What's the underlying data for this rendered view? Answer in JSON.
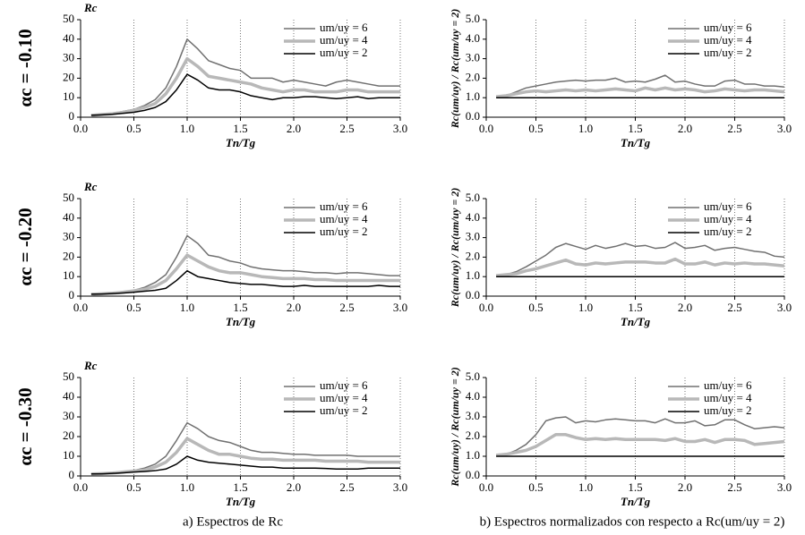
{
  "row_labels": [
    "αc = -0.10",
    "αc = -0.20",
    "αc = -0.30"
  ],
  "captions": [
    "a) Espectros de Rc",
    "b) Espectros normalizados con respecto a Rc(um/uy = 2)"
  ],
  "chart_data": [
    {
      "type": "line",
      "y_label": "Rc",
      "x_label": "Tn/Tg",
      "x": [
        0.1,
        0.2,
        0.3,
        0.4,
        0.5,
        0.6,
        0.7,
        0.8,
        0.9,
        1.0,
        1.1,
        1.2,
        1.3,
        1.4,
        1.5,
        1.6,
        1.7,
        1.8,
        1.9,
        2.0,
        2.1,
        2.2,
        2.3,
        2.4,
        2.5,
        2.6,
        2.7,
        2.8,
        2.9,
        3.0
      ],
      "series": [
        {
          "name": "um/uy = 6",
          "color": "#707070",
          "width": 1.5,
          "values": [
            1,
            1.5,
            2,
            3,
            4,
            6,
            9,
            15,
            26,
            40,
            35,
            29,
            27,
            25,
            24,
            20,
            20,
            20,
            18,
            19,
            18,
            17,
            16,
            18,
            19,
            18,
            17,
            16,
            16,
            16
          ]
        },
        {
          "name": "um/uy = 4",
          "color": "#b8b8b8",
          "width": 3.5,
          "values": [
            1,
            1.4,
            1.8,
            2.5,
            3.5,
            5,
            7,
            12,
            20,
            30,
            26,
            21,
            20,
            19,
            18,
            17,
            15,
            14,
            13,
            14,
            14,
            13,
            13,
            13,
            14,
            14,
            13,
            13,
            13,
            13
          ]
        },
        {
          "name": "um/uy = 2",
          "color": "#000000",
          "width": 1.5,
          "values": [
            1,
            1.2,
            1.5,
            2,
            2.5,
            3.5,
            5,
            8,
            14,
            22,
            19,
            15,
            14,
            14,
            13,
            11,
            10,
            9,
            10,
            10,
            10.5,
            10.5,
            10,
            9.5,
            10,
            10.5,
            9.5,
            10,
            10,
            10
          ]
        }
      ],
      "xlim": [
        0,
        3
      ],
      "xticks": [
        {
          "value": 0,
          "label": "0.0"
        },
        0.5,
        {
          "value": 1,
          "label": "1.0"
        },
        1.5,
        {
          "value": 2,
          "label": "2.0"
        },
        2.5,
        {
          "value": 3,
          "label": "3.0"
        }
      ],
      "ylim": [
        0,
        50
      ],
      "yticks": [
        0,
        10,
        20,
        30,
        40,
        50
      ],
      "grid": "x",
      "legend": "upper right"
    },
    {
      "type": "line",
      "y_label": "Rc(um/uy) / Rc(um/uy = 2)",
      "x_label": "Tn/Tg",
      "x": [
        0.1,
        0.2,
        0.3,
        0.4,
        0.5,
        0.6,
        0.7,
        0.8,
        0.9,
        1.0,
        1.1,
        1.2,
        1.3,
        1.4,
        1.5,
        1.6,
        1.7,
        1.8,
        1.9,
        2.0,
        2.1,
        2.2,
        2.3,
        2.4,
        2.5,
        2.6,
        2.7,
        2.8,
        2.9,
        3.0
      ],
      "series": [
        {
          "name": "um/uy = 6",
          "color": "#707070",
          "width": 1.5,
          "values": [
            1.05,
            1.1,
            1.3,
            1.5,
            1.6,
            1.7,
            1.8,
            1.85,
            1.9,
            1.85,
            1.9,
            1.9,
            2.0,
            1.8,
            1.85,
            1.8,
            1.95,
            2.15,
            1.8,
            1.85,
            1.7,
            1.6,
            1.6,
            1.85,
            1.9,
            1.7,
            1.7,
            1.6,
            1.6,
            1.55
          ]
        },
        {
          "name": "um/uy = 4",
          "color": "#b8b8b8",
          "width": 3.5,
          "values": [
            1.05,
            1.1,
            1.2,
            1.3,
            1.35,
            1.3,
            1.35,
            1.4,
            1.35,
            1.4,
            1.35,
            1.4,
            1.45,
            1.4,
            1.35,
            1.5,
            1.4,
            1.5,
            1.4,
            1.45,
            1.4,
            1.3,
            1.35,
            1.45,
            1.4,
            1.35,
            1.4,
            1.4,
            1.35,
            1.3
          ]
        },
        {
          "name": "um/uy = 2",
          "color": "#000000",
          "width": 1.5,
          "values": [
            1,
            1,
            1,
            1,
            1,
            1,
            1,
            1,
            1,
            1,
            1,
            1,
            1,
            1,
            1,
            1,
            1,
            1,
            1,
            1,
            1,
            1,
            1,
            1,
            1,
            1,
            1,
            1,
            1,
            1
          ]
        }
      ],
      "xlim": [
        0,
        3
      ],
      "xticks": [
        {
          "value": 0,
          "label": "0.0"
        },
        0.5,
        {
          "value": 1,
          "label": "1.0"
        },
        1.5,
        {
          "value": 2,
          "label": "2.0"
        },
        2.5,
        {
          "value": 3,
          "label": "3.0"
        }
      ],
      "ylim": [
        0,
        5
      ],
      "yticks": [
        {
          "value": 0,
          "label": "0.0"
        },
        {
          "value": 1,
          "label": "1.0"
        },
        {
          "value": 2,
          "label": "2.0"
        },
        {
          "value": 3,
          "label": "3.0"
        },
        {
          "value": 4,
          "label": "4.0"
        },
        {
          "value": 5,
          "label": "5.0"
        }
      ],
      "grid": "x",
      "legend": "upper right"
    },
    {
      "type": "line",
      "y_label": "Rc",
      "x_label": "Tn/Tg",
      "x": [
        0.1,
        0.2,
        0.3,
        0.4,
        0.5,
        0.6,
        0.7,
        0.8,
        0.9,
        1.0,
        1.1,
        1.2,
        1.3,
        1.4,
        1.5,
        1.6,
        1.7,
        1.8,
        1.9,
        2.0,
        2.1,
        2.2,
        2.3,
        2.4,
        2.5,
        2.6,
        2.7,
        2.8,
        2.9,
        3.0
      ],
      "series": [
        {
          "name": "um/uy = 6",
          "color": "#707070",
          "width": 1.5,
          "values": [
            1,
            1.3,
            1.7,
            2.2,
            3,
            4.5,
            7,
            11,
            20,
            31,
            27,
            21,
            20,
            18,
            17,
            15,
            14,
            13.5,
            13,
            13,
            12.5,
            12,
            12,
            11.5,
            12,
            12,
            11.5,
            11,
            10.5,
            10.5
          ]
        },
        {
          "name": "um/uy = 4",
          "color": "#b8b8b8",
          "width": 3.5,
          "values": [
            1,
            1.2,
            1.5,
            2,
            2.7,
            3.5,
            5,
            8,
            14,
            21,
            18,
            15,
            13,
            12,
            12,
            11,
            10,
            9.5,
            9,
            9,
            9,
            8.5,
            8.5,
            8,
            8,
            8,
            8,
            8,
            8,
            8
          ]
        },
        {
          "name": "um/uy = 2",
          "color": "#000000",
          "width": 1.5,
          "values": [
            1,
            1.1,
            1.3,
            1.6,
            2,
            2.5,
            3,
            4,
            8,
            13,
            10,
            9,
            8,
            7,
            6.5,
            6,
            6,
            5.5,
            5,
            5,
            5.5,
            5,
            5,
            5,
            5,
            5,
            5,
            5.5,
            5,
            5
          ]
        }
      ],
      "xlim": [
        0,
        3
      ],
      "xticks": [
        {
          "value": 0,
          "label": "0.0"
        },
        0.5,
        {
          "value": 1,
          "label": "1.0"
        },
        1.5,
        {
          "value": 2,
          "label": "2.0"
        },
        2.5,
        {
          "value": 3,
          "label": "3.0"
        }
      ],
      "ylim": [
        0,
        50
      ],
      "yticks": [
        0,
        10,
        20,
        30,
        40,
        50
      ],
      "grid": "x",
      "legend": "upper right"
    },
    {
      "type": "line",
      "y_label": "Rc(um/uy) / Rc(um/uy = 2)",
      "x_label": "Tn/Tg",
      "x": [
        0.1,
        0.2,
        0.3,
        0.4,
        0.5,
        0.6,
        0.7,
        0.8,
        0.9,
        1.0,
        1.1,
        1.2,
        1.3,
        1.4,
        1.5,
        1.6,
        1.7,
        1.8,
        1.9,
        2.0,
        2.1,
        2.2,
        2.3,
        2.4,
        2.5,
        2.6,
        2.7,
        2.8,
        2.9,
        3.0
      ],
      "series": [
        {
          "name": "um/uy = 6",
          "color": "#707070",
          "width": 1.5,
          "values": [
            1.05,
            1.1,
            1.25,
            1.5,
            1.8,
            2.1,
            2.5,
            2.7,
            2.55,
            2.4,
            2.6,
            2.45,
            2.55,
            2.7,
            2.55,
            2.6,
            2.45,
            2.5,
            2.75,
            2.45,
            2.5,
            2.6,
            2.35,
            2.45,
            2.5,
            2.4,
            2.3,
            2.25,
            2.05,
            2.0
          ]
        },
        {
          "name": "um/uy = 4",
          "color": "#b8b8b8",
          "width": 3.5,
          "values": [
            1.05,
            1.1,
            1.15,
            1.3,
            1.4,
            1.55,
            1.7,
            1.85,
            1.65,
            1.6,
            1.7,
            1.65,
            1.7,
            1.75,
            1.75,
            1.75,
            1.7,
            1.7,
            1.9,
            1.65,
            1.65,
            1.75,
            1.6,
            1.7,
            1.65,
            1.7,
            1.65,
            1.65,
            1.6,
            1.55
          ]
        },
        {
          "name": "um/uy = 2",
          "color": "#000000",
          "width": 1.5,
          "values": [
            1,
            1,
            1,
            1,
            1,
            1,
            1,
            1,
            1,
            1,
            1,
            1,
            1,
            1,
            1,
            1,
            1,
            1,
            1,
            1,
            1,
            1,
            1,
            1,
            1,
            1,
            1,
            1,
            1,
            1
          ]
        }
      ],
      "xlim": [
        0,
        3
      ],
      "xticks": [
        {
          "value": 0,
          "label": "0.0"
        },
        0.5,
        {
          "value": 1,
          "label": "1.0"
        },
        1.5,
        {
          "value": 2,
          "label": "2.0"
        },
        2.5,
        {
          "value": 3,
          "label": "3.0"
        }
      ],
      "ylim": [
        0,
        5
      ],
      "yticks": [
        {
          "value": 0,
          "label": "0.0"
        },
        {
          "value": 1,
          "label": "1.0"
        },
        {
          "value": 2,
          "label": "2.0"
        },
        {
          "value": 3,
          "label": "3.0"
        },
        {
          "value": 4,
          "label": "4.0"
        },
        {
          "value": 5,
          "label": "5.0"
        }
      ],
      "grid": "x",
      "legend": "upper right"
    },
    {
      "type": "line",
      "y_label": "Rc",
      "x_label": "Tn/Tg",
      "x": [
        0.1,
        0.2,
        0.3,
        0.4,
        0.5,
        0.6,
        0.7,
        0.8,
        0.9,
        1.0,
        1.1,
        1.2,
        1.3,
        1.4,
        1.5,
        1.6,
        1.7,
        1.8,
        1.9,
        2.0,
        2.1,
        2.2,
        2.3,
        2.4,
        2.5,
        2.6,
        2.7,
        2.8,
        2.9,
        3.0
      ],
      "series": [
        {
          "name": "um/uy = 6",
          "color": "#707070",
          "width": 1.5,
          "values": [
            1,
            1.3,
            1.7,
            2.2,
            2.8,
            4,
            6,
            10,
            18,
            27,
            24,
            20,
            18,
            17,
            15,
            13,
            12,
            12,
            11.5,
            11,
            11,
            10.5,
            10.5,
            10.5,
            10.5,
            10,
            10,
            10,
            10,
            10
          ]
        },
        {
          "name": "um/uy = 4",
          "color": "#b8b8b8",
          "width": 3.5,
          "values": [
            1,
            1.2,
            1.5,
            2,
            2.5,
            3,
            4.5,
            7,
            12,
            19,
            16,
            13,
            11,
            11,
            10,
            9,
            8.5,
            8.5,
            8,
            8,
            8,
            8,
            7.5,
            7.5,
            7.5,
            7.5,
            7,
            7,
            7,
            7
          ]
        },
        {
          "name": "um/uy = 2",
          "color": "#000000",
          "width": 1.5,
          "values": [
            1,
            1.1,
            1.3,
            1.6,
            2,
            2.3,
            2.7,
            3.5,
            6,
            10,
            8,
            7,
            6.5,
            6,
            5.5,
            5,
            4.5,
            4.5,
            4,
            4,
            4,
            4,
            3.8,
            3.5,
            3.5,
            3.5,
            4,
            4,
            4,
            4
          ]
        }
      ],
      "xlim": [
        0,
        3
      ],
      "xticks": [
        {
          "value": 0,
          "label": "0.0"
        },
        0.5,
        {
          "value": 1,
          "label": "1.0"
        },
        1.5,
        {
          "value": 2,
          "label": "2.0"
        },
        2.5,
        {
          "value": 3,
          "label": "3.0"
        }
      ],
      "ylim": [
        0,
        50
      ],
      "yticks": [
        0,
        10,
        20,
        30,
        40,
        50
      ],
      "grid": "x",
      "legend": "upper right"
    },
    {
      "type": "line",
      "y_label": "Rc(um/uy) / Rc(um/uy = 2)",
      "x_label": "Tn/Tg",
      "x": [
        0.1,
        0.2,
        0.3,
        0.4,
        0.5,
        0.6,
        0.7,
        0.8,
        0.9,
        1.0,
        1.1,
        1.2,
        1.3,
        1.4,
        1.5,
        1.6,
        1.7,
        1.8,
        1.9,
        2.0,
        2.1,
        2.2,
        2.3,
        2.4,
        2.5,
        2.6,
        2.7,
        2.8,
        2.9,
        3.0
      ],
      "series": [
        {
          "name": "um/uy = 6",
          "color": "#707070",
          "width": 1.5,
          "values": [
            1.05,
            1.1,
            1.3,
            1.6,
            2.1,
            2.8,
            2.95,
            3.0,
            2.7,
            2.8,
            2.75,
            2.85,
            2.9,
            2.85,
            2.8,
            2.8,
            2.7,
            2.9,
            2.7,
            2.7,
            2.8,
            2.55,
            2.6,
            2.85,
            2.85,
            2.6,
            2.4,
            2.45,
            2.5,
            2.45
          ]
        },
        {
          "name": "um/uy = 4",
          "color": "#b8b8b8",
          "width": 3.5,
          "values": [
            1.05,
            1.1,
            1.2,
            1.3,
            1.5,
            1.8,
            2.1,
            2.1,
            1.95,
            1.85,
            1.9,
            1.85,
            1.9,
            1.85,
            1.85,
            1.85,
            1.85,
            1.8,
            1.9,
            1.75,
            1.75,
            1.85,
            1.7,
            1.85,
            1.85,
            1.8,
            1.6,
            1.65,
            1.7,
            1.75
          ]
        },
        {
          "name": "um/uy = 2",
          "color": "#000000",
          "width": 1.5,
          "values": [
            1,
            1,
            1,
            1,
            1,
            1,
            1,
            1,
            1,
            1,
            1,
            1,
            1,
            1,
            1,
            1,
            1,
            1,
            1,
            1,
            1,
            1,
            1,
            1,
            1,
            1,
            1,
            1,
            1,
            1
          ]
        }
      ],
      "xlim": [
        0,
        3
      ],
      "xticks": [
        {
          "value": 0,
          "label": "0.0"
        },
        0.5,
        {
          "value": 1,
          "label": "1.0"
        },
        1.5,
        {
          "value": 2,
          "label": "2.0"
        },
        2.5,
        {
          "value": 3,
          "label": "3.0"
        }
      ],
      "ylim": [
        0,
        5
      ],
      "yticks": [
        {
          "value": 0,
          "label": "0.0"
        },
        {
          "value": 1,
          "label": "1.0"
        },
        {
          "value": 2,
          "label": "2.0"
        },
        {
          "value": 3,
          "label": "3.0"
        },
        {
          "value": 4,
          "label": "4.0"
        },
        {
          "value": 5,
          "label": "5.0"
        }
      ],
      "grid": "x",
      "legend": "upper right"
    }
  ]
}
